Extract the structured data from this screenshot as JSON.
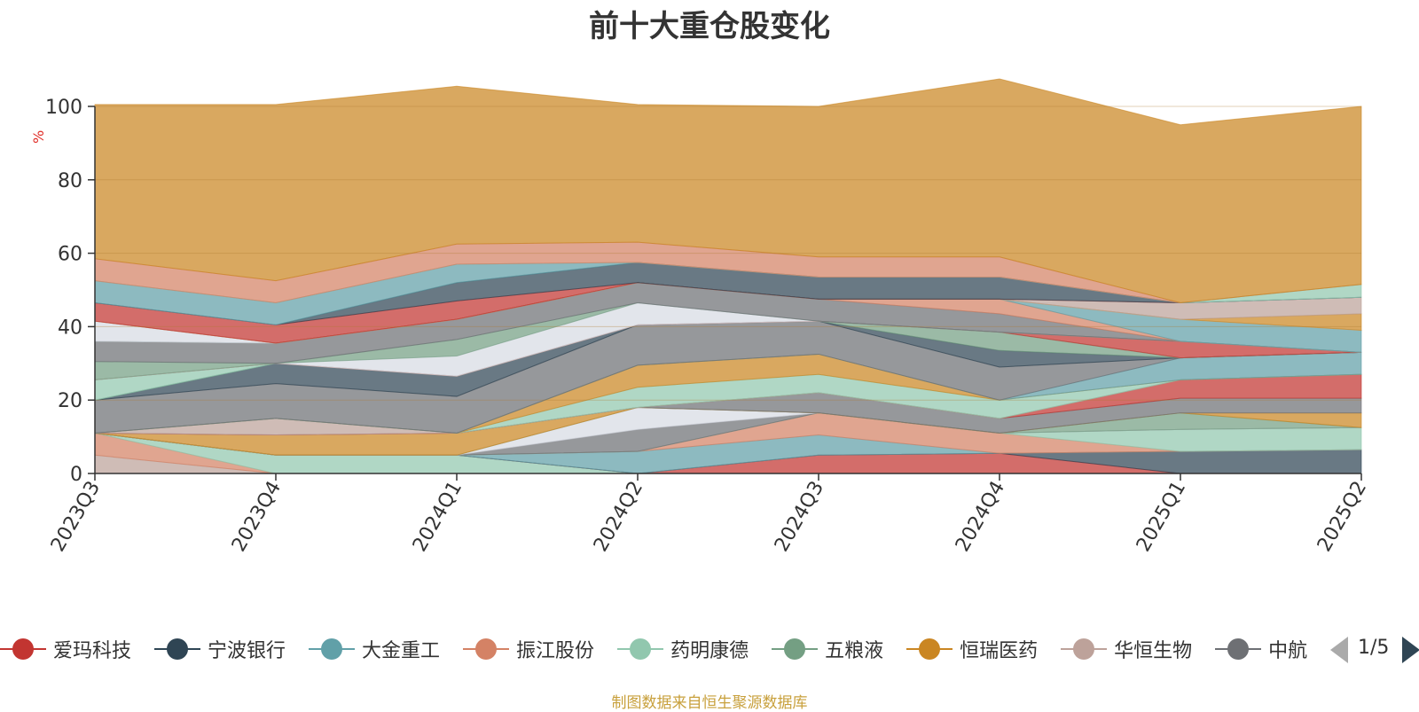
{
  "title": "前十大重仓股变化",
  "source": {
    "text": "制图数据来自恒生聚源数据库",
    "color": "#c8a03c"
  },
  "legend": {
    "items": [
      {
        "name": "爱玛科技",
        "color": "#c23531"
      },
      {
        "name": "宁波银行",
        "color": "#2f4554"
      },
      {
        "name": "大金重工",
        "color": "#61a0a8"
      },
      {
        "name": "振江股份",
        "color": "#d48265"
      },
      {
        "name": "药明康德",
        "color": "#91c7ae"
      },
      {
        "name": "五粮液",
        "color": "#749f83"
      },
      {
        "name": "恒瑞医药",
        "color": "#ca8622"
      },
      {
        "name": "华恒生物",
        "color": "#bda29a"
      },
      {
        "name": "中航",
        "color": "#6e7074"
      }
    ],
    "page": "1/5"
  },
  "chart_data": {
    "type": "area",
    "stacked": true,
    "categories": [
      "2023Q3",
      "2023Q4",
      "2024Q1",
      "2024Q2",
      "2024Q3",
      "2024Q4",
      "2025Q1",
      "2025Q2"
    ],
    "ylabel": "%",
    "ylim": [
      0,
      100
    ],
    "yticks": [
      0,
      20,
      40,
      60,
      80,
      100
    ],
    "grid": true,
    "bands": [
      {
        "color": "#bda29a",
        "values": [
          5,
          0,
          0,
          0,
          0,
          0,
          0,
          0
        ]
      },
      {
        "color": "#d48265",
        "values": [
          6,
          0,
          0,
          0,
          0,
          0,
          0,
          0
        ]
      },
      {
        "color": "#91c7ae",
        "values": [
          0,
          5,
          5,
          0,
          0,
          0,
          0,
          0
        ]
      },
      {
        "color": "#c23531",
        "values": [
          0,
          0,
          0,
          0,
          5,
          5.5,
          0,
          0
        ]
      },
      {
        "color": "#2f4554",
        "values": [
          0,
          0,
          0,
          0,
          0,
          0,
          6,
          6.5
        ]
      },
      {
        "color": "#61a0a8",
        "values": [
          0,
          0,
          0,
          6,
          5.5,
          0,
          0,
          0
        ]
      },
      {
        "color": "#d48265",
        "values": [
          0,
          0,
          0,
          0,
          6,
          5.5,
          0,
          0
        ]
      },
      {
        "color": "#91c7ae",
        "values": [
          0,
          0,
          0,
          0,
          0,
          0,
          6,
          6
        ]
      },
      {
        "color": "#6e7074",
        "values": [
          0,
          0,
          0,
          6,
          0,
          0,
          0,
          0
        ]
      },
      {
        "color": "#d7dbe3",
        "values": [
          0,
          0,
          0,
          6,
          0,
          0,
          0,
          0
        ]
      },
      {
        "color": "#749f83",
        "values": [
          0,
          0,
          0,
          0,
          0,
          0,
          4.5,
          0
        ]
      },
      {
        "color": "#ca8622",
        "values": [
          0,
          5.5,
          6,
          0,
          0,
          0,
          0,
          4
        ]
      },
      {
        "color": "#6e7074",
        "values": [
          0,
          0,
          0,
          0,
          5.5,
          4,
          4,
          4
        ]
      },
      {
        "color": "#c23531",
        "values": [
          0,
          0,
          0,
          0,
          0,
          0,
          5,
          6.5
        ]
      },
      {
        "color": "#bda29a",
        "values": [
          0,
          4.5,
          0,
          0,
          0,
          0,
          0,
          0
        ]
      },
      {
        "color": "#91c7ae",
        "values": [
          0,
          0,
          0,
          5.5,
          5,
          5,
          0,
          0
        ]
      },
      {
        "color": "#ca8622",
        "values": [
          0,
          0,
          0,
          6,
          5.5,
          0,
          0,
          0
        ]
      },
      {
        "color": "#61a0a8",
        "values": [
          0,
          0,
          0,
          0,
          0,
          0,
          6,
          6
        ]
      },
      {
        "color": "#6e7074",
        "values": [
          9,
          9.5,
          10,
          11,
          9,
          9,
          0,
          0
        ]
      },
      {
        "color": "#2f4554",
        "values": [
          0,
          5.5,
          5.5,
          0,
          0,
          4.5,
          0,
          0
        ]
      },
      {
        "color": "#749f83",
        "values": [
          0,
          0,
          0,
          0,
          0,
          5,
          0,
          0
        ]
      },
      {
        "color": "#91c7ae",
        "values": [
          5.5,
          0,
          0,
          0,
          0,
          0,
          0,
          0
        ]
      },
      {
        "color": "#c23531",
        "values": [
          0,
          0,
          0,
          0,
          0,
          0,
          4.5,
          0
        ]
      },
      {
        "color": "#d7dbe3",
        "values": [
          0,
          0,
          5.5,
          6,
          0,
          0,
          0,
          0
        ]
      },
      {
        "color": "#749f83",
        "values": [
          5,
          0,
          4.5,
          0,
          0,
          0,
          0,
          0
        ]
      },
      {
        "color": "#6e7074",
        "values": [
          5.5,
          5.5,
          5.5,
          5.5,
          6,
          5,
          0,
          0
        ]
      },
      {
        "color": "#d48265",
        "values": [
          0,
          0,
          0,
          0,
          0,
          4,
          0,
          0
        ]
      },
      {
        "color": "#61a0a8",
        "values": [
          0,
          0,
          0,
          0,
          0,
          0,
          6,
          6
        ]
      },
      {
        "color": "#d7dbe3",
        "values": [
          5.5,
          0,
          0,
          0,
          0,
          0,
          0,
          0
        ]
      },
      {
        "color": "#ca8622",
        "values": [
          0,
          0,
          0,
          0,
          0,
          0,
          0,
          4.5
        ]
      },
      {
        "color": "#bda29a",
        "values": [
          0,
          0,
          0,
          0,
          0,
          0,
          4.5,
          4.5
        ]
      },
      {
        "color": "#c23531",
        "values": [
          5,
          5,
          5,
          0,
          0,
          0,
          0,
          0
        ]
      },
      {
        "color": "#2f4554",
        "values": [
          0,
          0,
          5,
          5.5,
          6,
          6,
          0,
          0
        ]
      },
      {
        "color": "#61a0a8",
        "values": [
          6,
          6,
          5,
          0,
          0,
          0,
          0,
          0
        ]
      },
      {
        "color": "#91c7ae",
        "values": [
          0,
          0,
          0,
          0,
          0,
          0,
          0,
          3.5
        ]
      },
      {
        "color": "#d48265",
        "values": [
          6,
          6,
          5.5,
          5.5,
          5.5,
          5.5,
          0,
          0
        ]
      },
      {
        "color": "#ca8622",
        "values": [
          42,
          48,
          43,
          37.5,
          41,
          48.5,
          48.5,
          48.5
        ]
      }
    ]
  }
}
